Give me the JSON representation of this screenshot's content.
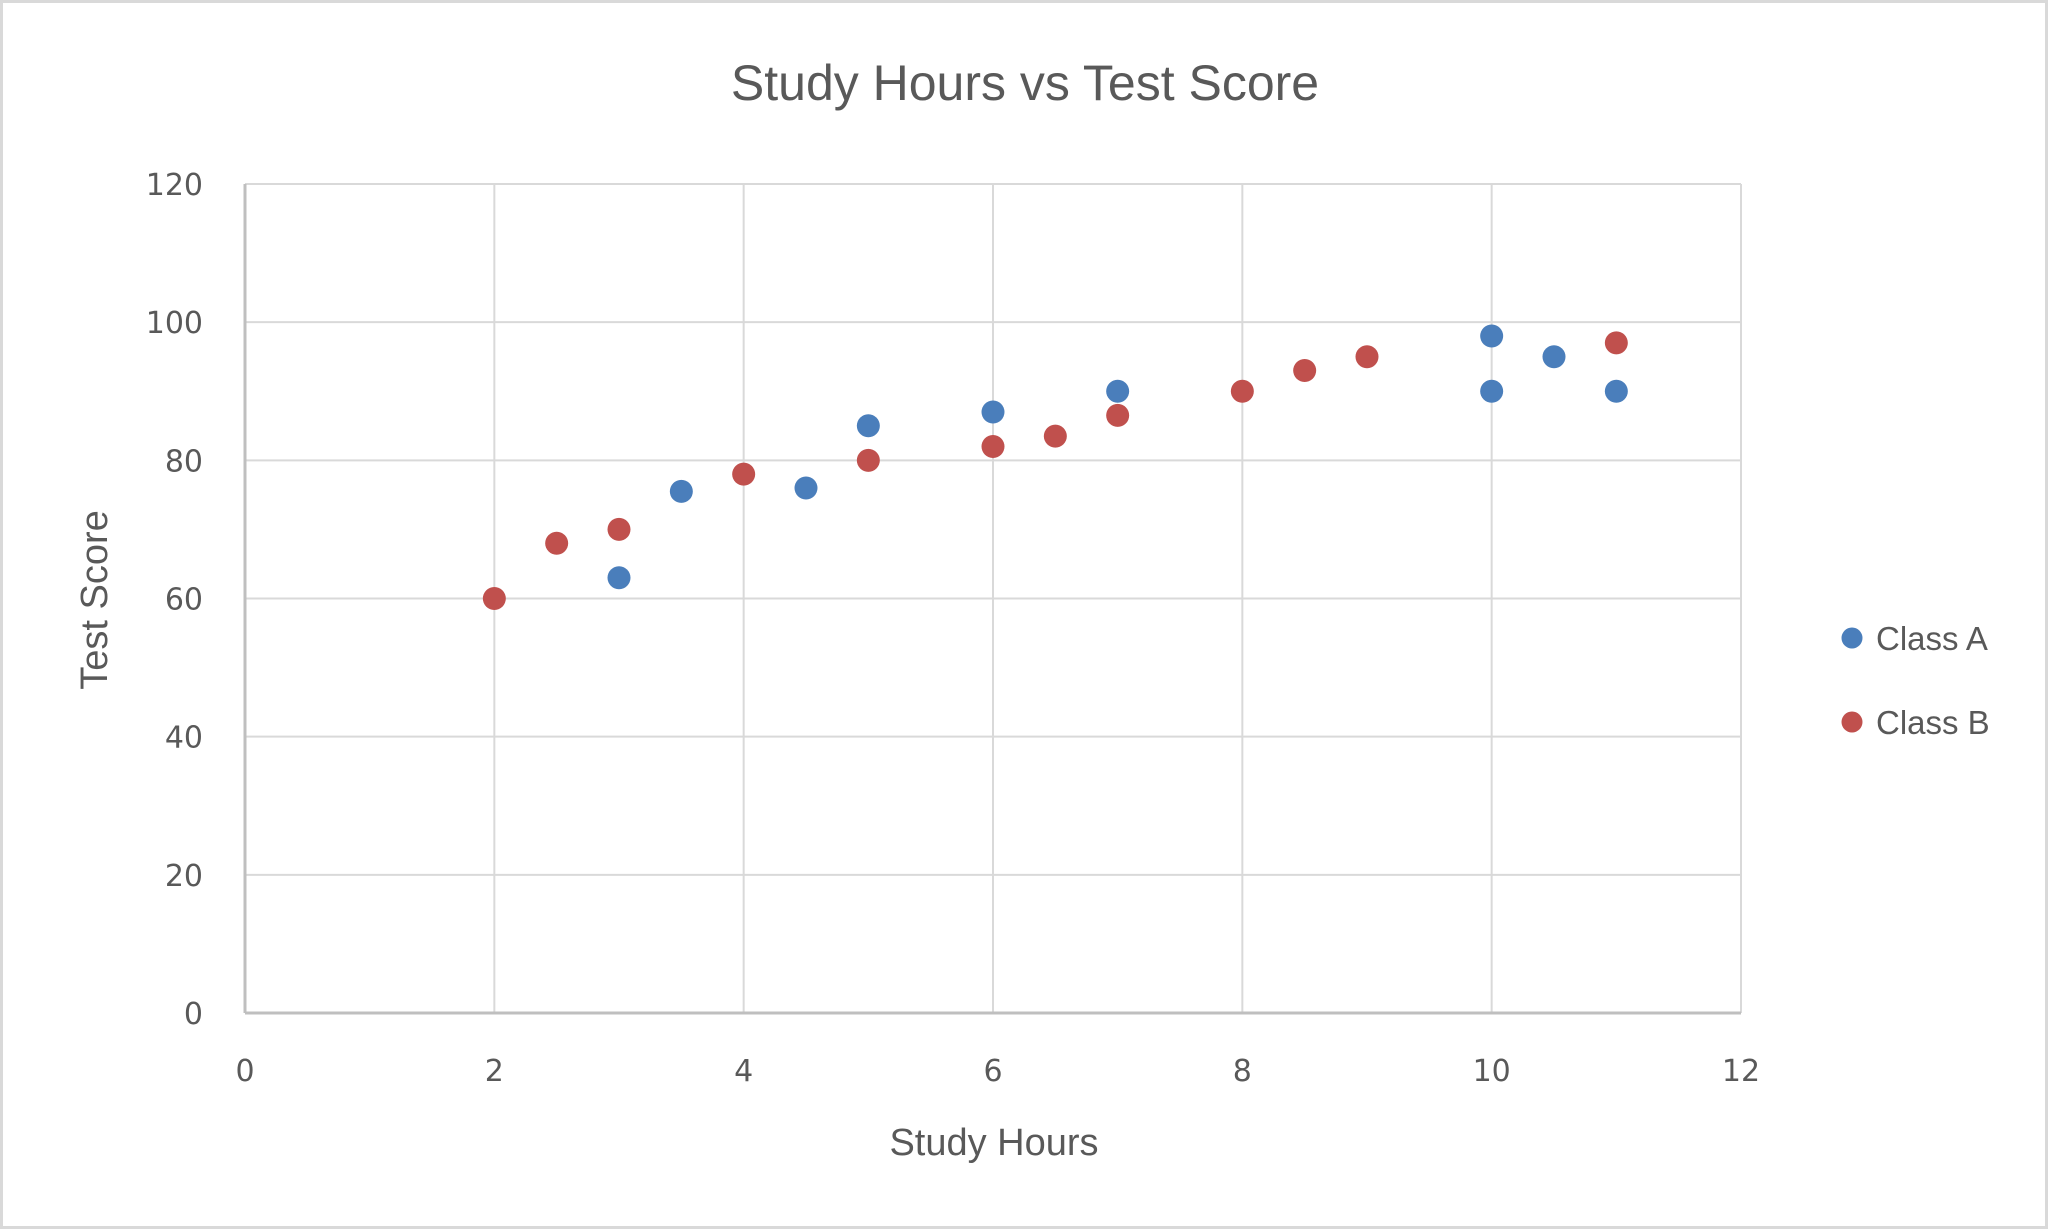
{
  "chart_data": {
    "type": "scatter",
    "title": "Study Hours vs Test Score",
    "xlabel": "Study Hours",
    "ylabel": "Test Score",
    "xlim": [
      0,
      12
    ],
    "ylim": [
      0,
      120
    ],
    "x_ticks": [
      0,
      2,
      4,
      6,
      8,
      10,
      12
    ],
    "y_ticks": [
      0,
      20,
      40,
      60,
      80,
      100,
      120
    ],
    "grid": true,
    "legend_position": "right",
    "series": [
      {
        "name": "Class A",
        "color": "#4a7ebb",
        "points": [
          {
            "x": 3,
            "y": 63
          },
          {
            "x": 3.5,
            "y": 75.5
          },
          {
            "x": 4.5,
            "y": 76
          },
          {
            "x": 5,
            "y": 85
          },
          {
            "x": 6,
            "y": 87
          },
          {
            "x": 7,
            "y": 90
          },
          {
            "x": 10,
            "y": 98
          },
          {
            "x": 10,
            "y": 90
          },
          {
            "x": 10.5,
            "y": 95
          },
          {
            "x": 11,
            "y": 90
          }
        ]
      },
      {
        "name": "Class B",
        "color": "#c0504d",
        "points": [
          {
            "x": 2,
            "y": 60
          },
          {
            "x": 2.5,
            "y": 68
          },
          {
            "x": 3,
            "y": 70
          },
          {
            "x": 4,
            "y": 78
          },
          {
            "x": 5,
            "y": 80
          },
          {
            "x": 6,
            "y": 82
          },
          {
            "x": 6.5,
            "y": 83.5
          },
          {
            "x": 7,
            "y": 86.5
          },
          {
            "x": 8,
            "y": 90
          },
          {
            "x": 8.5,
            "y": 93
          },
          {
            "x": 9,
            "y": 95
          },
          {
            "x": 11,
            "y": 97
          }
        ]
      }
    ]
  },
  "legend": {
    "items": [
      {
        "label": "Class A",
        "color": "#4a7ebb"
      },
      {
        "label": "Class B",
        "color": "#c0504d"
      }
    ]
  }
}
